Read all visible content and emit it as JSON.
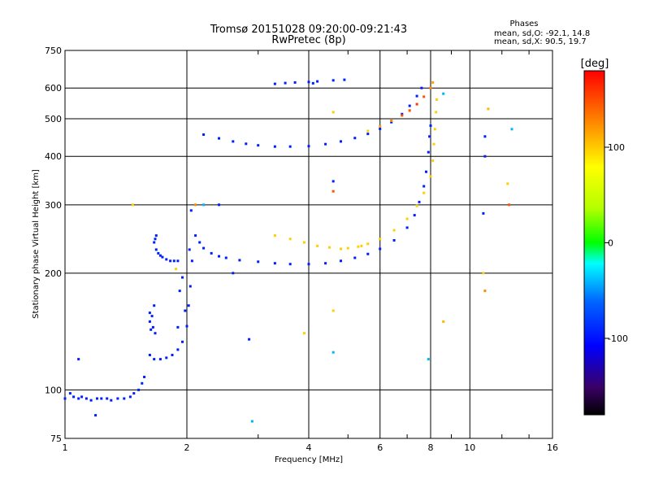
{
  "chart_data": {
    "type": "scatter",
    "title": "Tromsø 20151028 09:20:00-09:21:43",
    "subtitle": "RwPretec (8p)",
    "xlabel": "Frequency [MHz]",
    "ylabel": "Stationary phase Virtual Height [km]",
    "x_scale": "log",
    "y_scale": "log",
    "xlim": [
      1,
      16
    ],
    "ylim": [
      75,
      750
    ],
    "grid": true,
    "x_ticks": [
      1,
      2,
      4,
      6,
      8,
      10,
      16
    ],
    "x_tick_labels": [
      "1",
      "2",
      "4",
      "6",
      "8",
      "10",
      "16"
    ],
    "y_ticks": [
      75,
      100,
      200,
      300,
      400,
      500,
      600,
      750
    ],
    "y_tick_labels": [
      "75",
      "100",
      "200",
      "300",
      "400",
      "500",
      "600",
      "750"
    ],
    "phase_stats": {
      "heading": "Phases",
      "line_o": "mean, sd,O: -92.1, 14.8",
      "line_x": "mean, sd,X:  90.5, 19.7"
    },
    "colorbar": {
      "label": "[deg]",
      "range": [
        -180,
        180
      ],
      "ticks": [
        -100,
        0,
        100
      ],
      "tick_labels": [
        "-100",
        "0",
        "100"
      ],
      "colormap": "rainbow (black-purple-blue-cyan-green-yellow-red)"
    },
    "series": [
      {
        "trace": "low-E flat trace",
        "points": [
          [
            1.0,
            95,
            -95
          ],
          [
            1.03,
            98,
            -95
          ],
          [
            1.05,
            96,
            -95
          ],
          [
            1.08,
            95,
            -95
          ],
          [
            1.1,
            96,
            -95
          ],
          [
            1.13,
            95,
            -95
          ],
          [
            1.16,
            94,
            -95
          ],
          [
            1.2,
            95,
            -95
          ],
          [
            1.23,
            95,
            -95
          ],
          [
            1.27,
            95,
            -95
          ],
          [
            1.3,
            94,
            -95
          ],
          [
            1.35,
            95,
            -95
          ],
          [
            1.4,
            95,
            -95
          ],
          [
            1.45,
            96,
            -95
          ],
          [
            1.48,
            98,
            -95
          ],
          [
            1.52,
            100,
            -95
          ],
          [
            1.55,
            104,
            -95
          ],
          [
            1.57,
            108,
            -95
          ]
        ]
      },
      {
        "trace": "E-layer cusp",
        "points": [
          [
            1.62,
            123,
            -95
          ],
          [
            1.66,
            120,
            -95
          ],
          [
            1.72,
            120,
            -95
          ],
          [
            1.78,
            121,
            -95
          ],
          [
            1.84,
            123,
            -95
          ],
          [
            1.9,
            127,
            -95
          ],
          [
            1.95,
            133,
            -95
          ],
          [
            2.0,
            146,
            -95
          ],
          [
            2.02,
            165,
            -95
          ],
          [
            2.04,
            185,
            -95
          ],
          [
            2.06,
            215,
            -95
          ],
          [
            1.95,
            195,
            -95
          ],
          [
            1.92,
            180,
            -95
          ],
          [
            1.98,
            160,
            -95
          ],
          [
            1.9,
            145,
            -95
          ],
          [
            2.03,
            230,
            -95
          ]
        ]
      },
      {
        "trace": "E-layer second hop",
        "points": [
          [
            1.62,
            150,
            -95
          ],
          [
            1.65,
            145,
            -95
          ],
          [
            1.62,
            158,
            -95
          ],
          [
            1.66,
            165,
            -95
          ],
          [
            1.63,
            143,
            -95
          ],
          [
            1.67,
            140,
            -95
          ],
          [
            1.64,
            155,
            -95
          ]
        ]
      },
      {
        "trace": "Es / sporadic segment",
        "points": [
          [
            1.66,
            240,
            -95
          ],
          [
            1.68,
            230,
            -95
          ],
          [
            1.7,
            225,
            -95
          ],
          [
            1.72,
            222,
            -95
          ],
          [
            1.74,
            220,
            -95
          ],
          [
            1.78,
            217,
            -95
          ],
          [
            1.82,
            215,
            -95
          ],
          [
            1.86,
            215,
            -95
          ],
          [
            1.9,
            215,
            -95
          ],
          [
            1.68,
            250,
            -95
          ],
          [
            1.67,
            245,
            -95
          ]
        ]
      },
      {
        "trace": "F2 O-mode",
        "points": [
          [
            2.05,
            290,
            -95
          ],
          [
            2.1,
            250,
            -95
          ],
          [
            2.15,
            240,
            -95
          ],
          [
            2.2,
            232,
            -95
          ],
          [
            2.3,
            225,
            -95
          ],
          [
            2.4,
            221,
            -95
          ],
          [
            2.5,
            219,
            -95
          ],
          [
            2.7,
            216,
            -95
          ],
          [
            3.0,
            214,
            -95
          ],
          [
            3.3,
            212,
            -95
          ],
          [
            3.6,
            211,
            -95
          ],
          [
            4.0,
            211,
            -95
          ],
          [
            4.4,
            212,
            -95
          ],
          [
            4.8,
            215,
            -95
          ],
          [
            5.2,
            219,
            -95
          ],
          [
            5.6,
            224,
            -95
          ],
          [
            6.0,
            231,
            -95
          ],
          [
            6.5,
            243,
            -95
          ],
          [
            7.0,
            262,
            -95
          ],
          [
            7.3,
            282,
            -95
          ],
          [
            7.5,
            305,
            -95
          ],
          [
            7.7,
            335,
            -95
          ],
          [
            7.8,
            365,
            -95
          ],
          [
            7.9,
            410,
            -95
          ],
          [
            7.95,
            450,
            -95
          ],
          [
            8.0,
            480,
            -95
          ]
        ]
      },
      {
        "trace": "F2 X-mode",
        "points": [
          [
            3.3,
            250,
            100
          ],
          [
            3.6,
            245,
            100
          ],
          [
            3.9,
            240,
            100
          ],
          [
            4.2,
            235,
            100
          ],
          [
            4.5,
            233,
            100
          ],
          [
            4.8,
            231,
            100
          ],
          [
            5.0,
            232,
            100
          ],
          [
            5.3,
            234,
            100
          ],
          [
            5.6,
            238,
            100
          ],
          [
            6.0,
            245,
            100
          ],
          [
            6.5,
            258,
            100
          ],
          [
            7.0,
            276,
            100
          ],
          [
            7.4,
            298,
            100
          ],
          [
            7.7,
            322,
            100
          ],
          [
            8.0,
            355,
            100
          ],
          [
            8.1,
            390,
            100
          ],
          [
            8.15,
            430,
            100
          ],
          [
            8.2,
            470,
            100
          ],
          [
            8.25,
            520,
            100
          ],
          [
            8.28,
            560,
            100
          ]
        ]
      },
      {
        "trace": "F2 second hop O-mode",
        "points": [
          [
            2.2,
            455,
            -95
          ],
          [
            2.4,
            445,
            -95
          ],
          [
            2.6,
            437,
            -95
          ],
          [
            2.8,
            431,
            -95
          ],
          [
            3.0,
            427,
            -95
          ],
          [
            3.3,
            424,
            -95
          ],
          [
            3.6,
            424,
            -95
          ],
          [
            4.0,
            425,
            -95
          ],
          [
            4.4,
            430,
            -95
          ],
          [
            4.8,
            437,
            -95
          ],
          [
            5.2,
            446,
            -95
          ],
          [
            5.6,
            457,
            -95
          ],
          [
            6.0,
            471,
            -95
          ],
          [
            6.4,
            490,
            -95
          ],
          [
            6.8,
            514,
            -95
          ],
          [
            7.1,
            540,
            -95
          ],
          [
            7.4,
            572,
            -95
          ],
          [
            7.6,
            600,
            -95
          ]
        ]
      },
      {
        "trace": "F2 second hop X-mode",
        "points": [
          [
            5.6,
            465,
            100
          ],
          [
            6.0,
            478,
            120
          ],
          [
            6.4,
            494,
            130
          ],
          [
            6.8,
            510,
            150
          ],
          [
            7.1,
            525,
            150
          ],
          [
            7.4,
            545,
            160
          ],
          [
            7.7,
            570,
            150
          ],
          [
            8.0,
            600,
            130
          ],
          [
            8.1,
            620,
            120
          ]
        ]
      },
      {
        "trace": "high F echoes",
        "points": [
          [
            3.3,
            615,
            -95
          ],
          [
            3.5,
            618,
            -95
          ],
          [
            3.7,
            620,
            -95
          ],
          [
            4.0,
            622,
            -95
          ],
          [
            4.2,
            624,
            -95
          ],
          [
            4.6,
            628,
            -95
          ],
          [
            4.9,
            630,
            -95
          ]
        ]
      },
      {
        "trace": "scattered points",
        "points": [
          [
            1.08,
            120,
            -95
          ],
          [
            1.19,
            86,
            -95
          ],
          [
            1.47,
            300,
            100
          ],
          [
            1.88,
            205,
            100
          ],
          [
            2.1,
            300,
            130
          ],
          [
            2.2,
            300,
            -40
          ],
          [
            2.4,
            300,
            -95
          ],
          [
            2.6,
            200,
            -95
          ],
          [
            2.85,
            135,
            -95
          ],
          [
            2.9,
            83,
            -40
          ],
          [
            3.9,
            140,
            100
          ],
          [
            4.6,
            125,
            -40
          ],
          [
            4.6,
            160,
            100
          ],
          [
            4.6,
            345,
            -95
          ],
          [
            4.6,
            520,
            100
          ],
          [
            4.6,
            325,
            150
          ],
          [
            5.4,
            235,
            100
          ],
          [
            7.9,
            120,
            -40
          ],
          [
            8.6,
            150,
            110
          ],
          [
            8.6,
            580,
            -40
          ],
          [
            10.8,
            200,
            100
          ],
          [
            10.9,
            180,
            130
          ],
          [
            10.9,
            450,
            -95
          ],
          [
            10.9,
            400,
            -95
          ],
          [
            10.8,
            285,
            -95
          ],
          [
            11.1,
            530,
            110
          ],
          [
            12.4,
            340,
            100
          ],
          [
            12.5,
            300,
            150
          ],
          [
            12.7,
            470,
            -40
          ],
          [
            4.1,
            617,
            -95
          ]
        ]
      }
    ]
  }
}
